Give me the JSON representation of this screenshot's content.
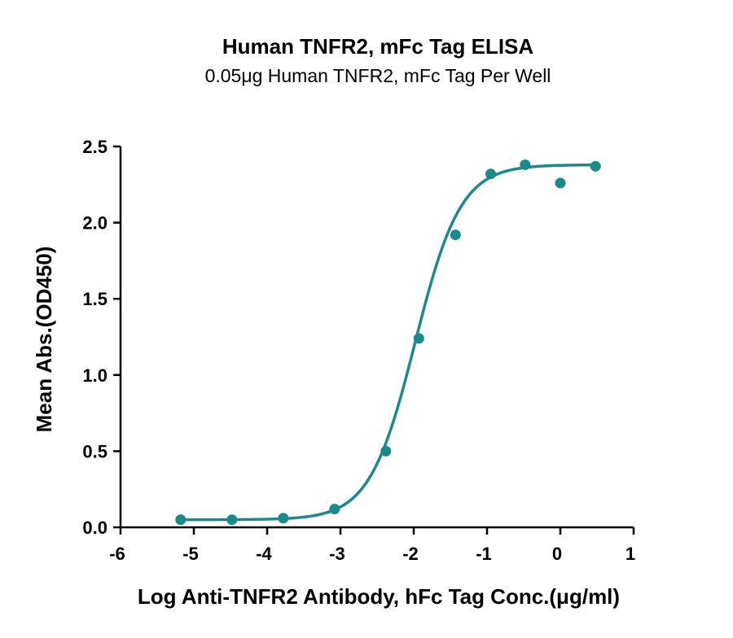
{
  "chart_data": {
    "type": "scatter",
    "title": "Human TNFR2, mFc Tag ELISA",
    "subtitle": "0.05μg Human TNFR2, mFc Tag Per Well",
    "xlabel": "Log Anti-TNFR2 Antibody, hFc Tag Conc.(μg/ml)",
    "ylabel": "Mean Abs.(OD450)",
    "xlim": [
      -6,
      1
    ],
    "ylim": [
      0,
      2.5
    ],
    "x_ticks": [
      -6,
      -5,
      -4,
      -3,
      -2,
      -1,
      0,
      1
    ],
    "x_tick_labels": [
      "-6",
      "-5",
      "-4",
      "-3",
      "-2",
      "-1",
      "0",
      "1"
    ],
    "y_ticks": [
      0,
      0.5,
      1,
      1.5,
      2,
      2.5
    ],
    "y_tick_labels": [
      "0.0",
      "0.5",
      "1.0",
      "1.5",
      "2.0",
      "2.5"
    ],
    "grid": false,
    "legend": "none",
    "series": [
      {
        "color": "#1a8a8a",
        "points": [
          {
            "x": -5.18,
            "y": 0.05
          },
          {
            "x": -4.48,
            "y": 0.05
          },
          {
            "x": -3.78,
            "y": 0.06
          },
          {
            "x": -3.08,
            "y": 0.12
          },
          {
            "x": -2.38,
            "y": 0.5
          },
          {
            "x": -1.93,
            "y": 1.24
          },
          {
            "x": -1.43,
            "y": 1.92
          },
          {
            "x": -0.95,
            "y": 2.32
          },
          {
            "x": -0.48,
            "y": 2.38
          },
          {
            "x": 0.0,
            "y": 2.26
          },
          {
            "x": 0.48,
            "y": 2.37
          }
        ],
        "fit": {
          "model": "4PL",
          "bottom": 0.05,
          "top": 2.38,
          "logEC50": -1.98,
          "hillSlope": 1.4,
          "x_range": [
            -5.18,
            0.48
          ]
        }
      }
    ]
  }
}
